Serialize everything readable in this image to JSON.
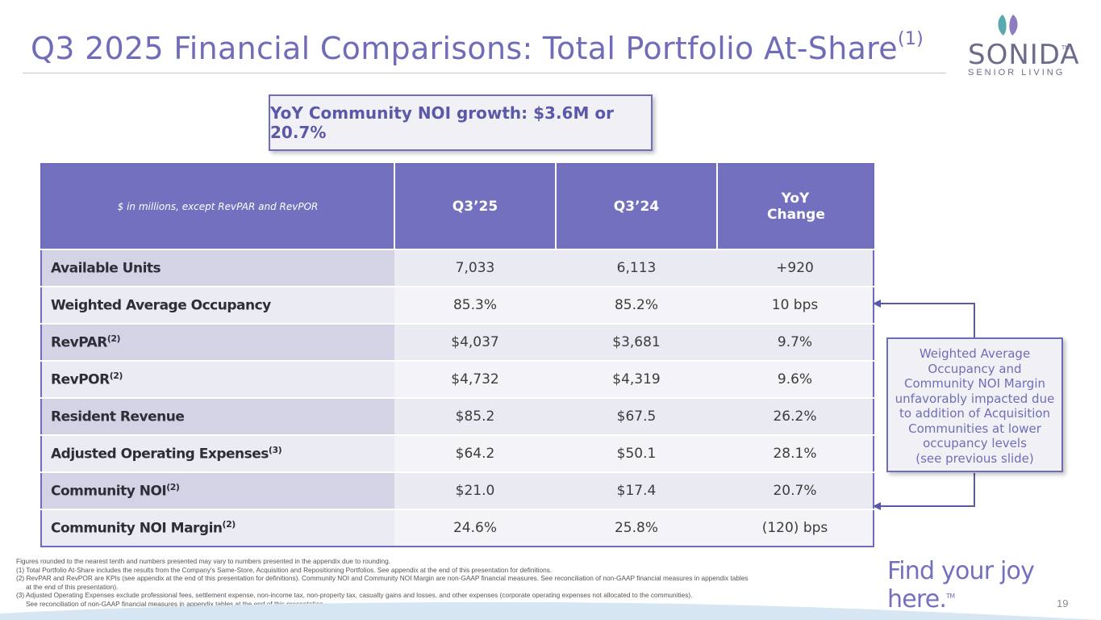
{
  "header": {
    "title": "Q3 2025 Financial Comparisons: Total Portfolio At-Share",
    "title_sup": "(1)"
  },
  "logo": {
    "word": "SONIDA",
    "tm": "TM",
    "sub": "SENIOR LIVING"
  },
  "callout": {
    "text": "YoY Community NOI growth: $3.6M or 20.7%"
  },
  "table": {
    "headers": [
      "$ in millions, except RevPAR and RevPOR",
      "Q3’25",
      "Q3’24",
      "YoY Change"
    ],
    "rows": [
      {
        "label": "Available Units",
        "sup": "",
        "q3_25": "7,033",
        "q3_24": "6,113",
        "change": "+920"
      },
      {
        "label": "Weighted Average Occupancy",
        "sup": "",
        "q3_25": "85.3%",
        "q3_24": "85.2%",
        "change": "10 bps"
      },
      {
        "label": "RevPAR",
        "sup": "(2)",
        "q3_25": "$4,037",
        "q3_24": "$3,681",
        "change": "9.7%"
      },
      {
        "label": "RevPOR",
        "sup": "(2)",
        "q3_25": "$4,732",
        "q3_24": "$4,319",
        "change": "9.6%"
      },
      {
        "label": "Resident Revenue",
        "sup": "",
        "q3_25": "$85.2",
        "q3_24": "$67.5",
        "change": "26.2%"
      },
      {
        "label": "Adjusted Operating Expenses",
        "sup": "(3)",
        "q3_25": "$64.2",
        "q3_24": "$50.1",
        "change": "28.1%"
      },
      {
        "label": "Community NOI",
        "sup": "(2)",
        "q3_25": "$21.0",
        "q3_24": "$17.4",
        "change": "20.7%"
      },
      {
        "label": "Community NOI Margin",
        "sup": "(2)",
        "q3_25": "24.6%",
        "q3_24": "25.8%",
        "change": "(120) bps"
      }
    ]
  },
  "note": {
    "lines": [
      "Weighted Average",
      "Occupancy and",
      "Community NOI Margin",
      "unfavorably impacted due",
      "to addition of Acquisition",
      "Communities at lower",
      "occupancy levels",
      "(see previous slide)"
    ]
  },
  "footnotes": {
    "line1": "Figures rounded to the nearest tenth and numbers presented may vary to numbers presented in the appendix due to rounding.",
    "line2": "(1) Total Portfolio At-Share includes the results from the Company's Same-Store, Acquisition and Repositioning Portfolios.  See appendix at the end of this presentation for definitions.",
    "line3": "(2) RevPAR and RevPOR are KPIs (see appendix at the end of this presentation for definitions). Community NOI and  Community NOI Margin are  non-GAAP financial measures. See reconciliation of non-GAAP financial measures in appendix tables",
    "line3b": "at the end of this presentation).",
    "line4": "(3) Adjusted Operating Expenses exclude professional fees, settlement expense, non-income tax, non-property tax, casualty gains and losses, and other expenses (corporate operating expenses not allocated to the communities).",
    "line4b": "See reconciliation of non-GAAP financial measures in appendix tables at the end of this presentation."
  },
  "tagline": {
    "text": "Find your joy here.",
    "tm": "TM"
  },
  "page_number": "19",
  "colors": {
    "accent": "#7371bf",
    "title": "#6f6db9",
    "logo_leaf_teal": "#5aa9b0",
    "logo_leaf_purple": "#8e7cc3"
  }
}
